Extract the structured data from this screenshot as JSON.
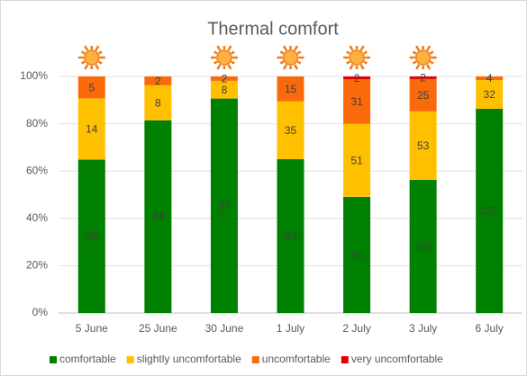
{
  "chart_data": {
    "type": "bar",
    "stacking": "percent",
    "title": "Thermal comfort",
    "categories": [
      "5 June",
      "25 June",
      "30 June",
      "1 July",
      "2 July",
      "3 July",
      "6 July"
    ],
    "series": [
      {
        "name": "comfortable",
        "color": "#008000",
        "values": [
          35,
          44,
          97,
          93,
          81,
          103,
          227
        ]
      },
      {
        "name": "slightly uncomfortable",
        "color": "#ffc000",
        "values": [
          14,
          8,
          8,
          35,
          51,
          53,
          32
        ]
      },
      {
        "name": "uncomfortable",
        "color": "#fa6a0a",
        "values": [
          5,
          2,
          2,
          15,
          31,
          25,
          4
        ]
      },
      {
        "name": "very uncomfortable",
        "color": "#e00000",
        "values": [
          0,
          0,
          0,
          0,
          2,
          2,
          0
        ]
      }
    ],
    "sunny": [
      true,
      false,
      true,
      true,
      true,
      true,
      false
    ],
    "ylim": [
      0,
      100
    ],
    "yticks": [
      {
        "value": 0,
        "label": "0%"
      },
      {
        "value": 20,
        "label": "20%"
      },
      {
        "value": 40,
        "label": "40%"
      },
      {
        "value": 60,
        "label": "60%"
      },
      {
        "value": 80,
        "label": "80%"
      },
      {
        "value": 100,
        "label": "100%"
      }
    ],
    "grid": true,
    "legend": "bottom"
  }
}
